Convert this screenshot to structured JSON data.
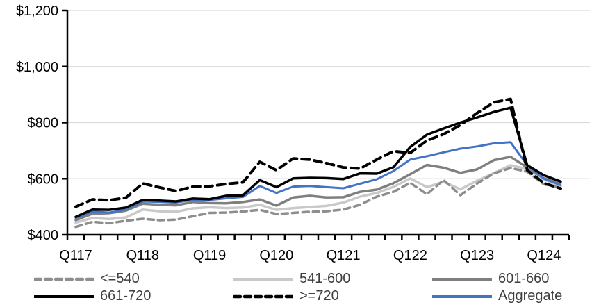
{
  "chart_data": {
    "type": "line",
    "title": "",
    "categories": [
      "Q117",
      "Q217",
      "Q317",
      "Q417",
      "Q118",
      "Q218",
      "Q318",
      "Q418",
      "Q119",
      "Q219",
      "Q319",
      "Q419",
      "Q120",
      "Q220",
      "Q320",
      "Q420",
      "Q121",
      "Q221",
      "Q321",
      "Q421",
      "Q122",
      "Q222",
      "Q322",
      "Q422",
      "Q123",
      "Q223",
      "Q323",
      "Q423",
      "Q124",
      "Q224"
    ],
    "x_tick_labels": [
      "Q117",
      "Q118",
      "Q119",
      "Q120",
      "Q121",
      "Q122",
      "Q123",
      "Q124"
    ],
    "x_label_every": 4,
    "y_tick_labels": [
      "$400",
      "$600",
      "$800",
      "$1,000",
      "$1,200"
    ],
    "y_tick_values": [
      400,
      600,
      800,
      1000,
      1200
    ],
    "ylim": [
      400,
      1200
    ],
    "grid": true,
    "legend_position": "bottom",
    "axis_color": "#000000",
    "gridline_color": "#D9D9D9",
    "series": [
      {
        "name": "<=540",
        "color": "#8E8E8E",
        "dash": "dashed",
        "values": [
          428,
          446,
          441,
          450,
          457,
          452,
          454,
          466,
          478,
          479,
          483,
          489,
          474,
          478,
          482,
          484,
          490,
          507,
          536,
          553,
          585,
          545,
          595,
          541,
          583,
          619,
          638,
          625,
          580,
          568
        ]
      },
      {
        "name": "541-600",
        "color": "#C9C9C9",
        "dash": "solid",
        "values": [
          443,
          460,
          456,
          462,
          490,
          484,
          482,
          494,
          498,
          495,
          497,
          507,
          489,
          495,
          499,
          503,
          515,
          536,
          549,
          571,
          601,
          570,
          589,
          562,
          593,
          620,
          648,
          634,
          598,
          572
        ]
      },
      {
        "name": "601-660",
        "color": "#7F7F7F",
        "dash": "solid",
        "values": [
          452,
          475,
          477,
          486,
          511,
          507,
          505,
          517,
          513,
          512,
          517,
          526,
          504,
          533,
          539,
          533,
          534,
          553,
          561,
          584,
          616,
          649,
          639,
          621,
          633,
          666,
          678,
          640,
          601,
          585
        ]
      },
      {
        "name": "661-720",
        "color": "#000000",
        "dash": "solid",
        "values": [
          464,
          490,
          489,
          497,
          524,
          522,
          519,
          529,
          527,
          539,
          541,
          595,
          570,
          601,
          603,
          602,
          599,
          619,
          618,
          641,
          713,
          757,
          779,
          800,
          818,
          838,
          853,
          648,
          612,
          590
        ]
      },
      {
        "name": ">=720",
        "color": "#000000",
        "dash": "dashed",
        "values": [
          500,
          526,
          523,
          532,
          583,
          569,
          556,
          572,
          573,
          581,
          587,
          660,
          630,
          672,
          668,
          655,
          640,
          636,
          668,
          698,
          692,
          736,
          759,
          791,
          834,
          872,
          884,
          630,
          584,
          565
        ]
      },
      {
        "name": "Aggregate",
        "color": "#4472C4",
        "dash": "solid",
        "values": [
          460,
          483,
          479,
          490,
          519,
          517,
          515,
          525,
          524,
          530,
          535,
          574,
          549,
          572,
          574,
          570,
          566,
          582,
          598,
          627,
          668,
          680,
          694,
          707,
          715,
          726,
          730,
          648,
          600,
          577
        ]
      }
    ]
  }
}
